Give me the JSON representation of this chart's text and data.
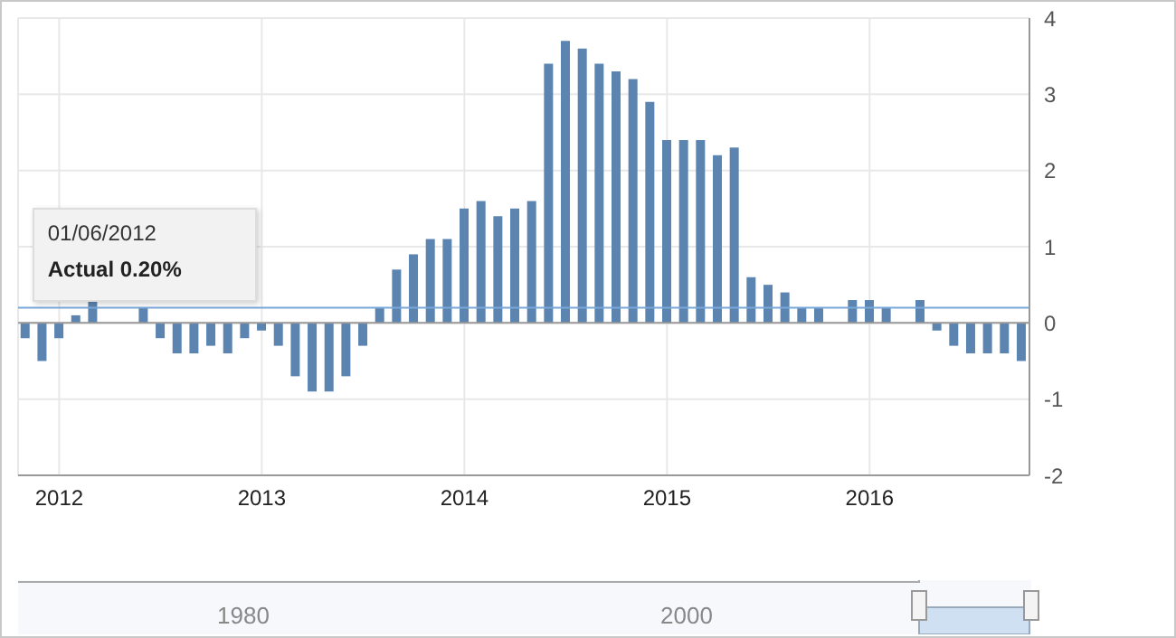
{
  "chart_data": {
    "type": "bar",
    "x": [
      "2011-11",
      "2011-12",
      "2012-01",
      "2012-02",
      "2012-03",
      "2012-04",
      "2012-05",
      "2012-06",
      "2012-07",
      "2012-08",
      "2012-09",
      "2012-10",
      "2012-11",
      "2012-12",
      "2013-01",
      "2013-02",
      "2013-03",
      "2013-04",
      "2013-05",
      "2013-06",
      "2013-07",
      "2013-08",
      "2013-09",
      "2013-10",
      "2013-11",
      "2013-12",
      "2014-01",
      "2014-02",
      "2014-03",
      "2014-04",
      "2014-05",
      "2014-06",
      "2014-07",
      "2014-08",
      "2014-09",
      "2014-10",
      "2014-11",
      "2014-12",
      "2015-01",
      "2015-02",
      "2015-03",
      "2015-04",
      "2015-05",
      "2015-06",
      "2015-07",
      "2015-08",
      "2015-09",
      "2015-10",
      "2015-11",
      "2015-12",
      "2016-01",
      "2016-02",
      "2016-03",
      "2016-04",
      "2016-05",
      "2016-06",
      "2016-07",
      "2016-08",
      "2016-09",
      "2016-10"
    ],
    "values": [
      -0.2,
      -0.5,
      -0.2,
      0.1,
      0.3,
      null,
      null,
      0.2,
      -0.2,
      -0.4,
      -0.4,
      -0.3,
      -0.4,
      -0.2,
      -0.1,
      -0.3,
      -0.7,
      -0.9,
      -0.9,
      -0.7,
      -0.3,
      0.2,
      0.7,
      0.9,
      1.1,
      1.1,
      1.5,
      1.6,
      1.4,
      1.5,
      1.6,
      3.4,
      3.7,
      3.6,
      3.4,
      3.3,
      3.2,
      2.9,
      2.4,
      2.4,
      2.4,
      2.2,
      2.3,
      0.6,
      0.5,
      0.4,
      0.2,
      0.2,
      0,
      0.3,
      0.3,
      0.2,
      0,
      0.3,
      -0.1,
      -0.3,
      -0.4,
      -0.4,
      -0.4,
      -0.5
    ],
    "color": "#5b84b1",
    "xlim": [
      "2011-10-18",
      "2016-10-15"
    ],
    "xticks": [
      {
        "value": "2012-01",
        "label": "2012"
      },
      {
        "value": "2013-01",
        "label": "2013"
      },
      {
        "value": "2014-01",
        "label": "2014"
      },
      {
        "value": "2015-01",
        "label": "2015"
      },
      {
        "value": "2016-01",
        "label": "2016"
      }
    ],
    "ylim": [
      -2,
      4
    ],
    "yticks": [
      -2,
      -1,
      0,
      1,
      2,
      3,
      4
    ],
    "grid": true,
    "ref_lines": [
      {
        "axis": "y",
        "value": 0.2,
        "color": "#7aa7d9"
      }
    ],
    "annotations": [
      {
        "text": "01/06/2012",
        "x": "2012-06",
        "y": 0.2
      },
      {
        "text": "Actual 0.20%",
        "x": "2012-06",
        "y": 0.2
      },
      "1980",
      "2000"
    ]
  }
}
